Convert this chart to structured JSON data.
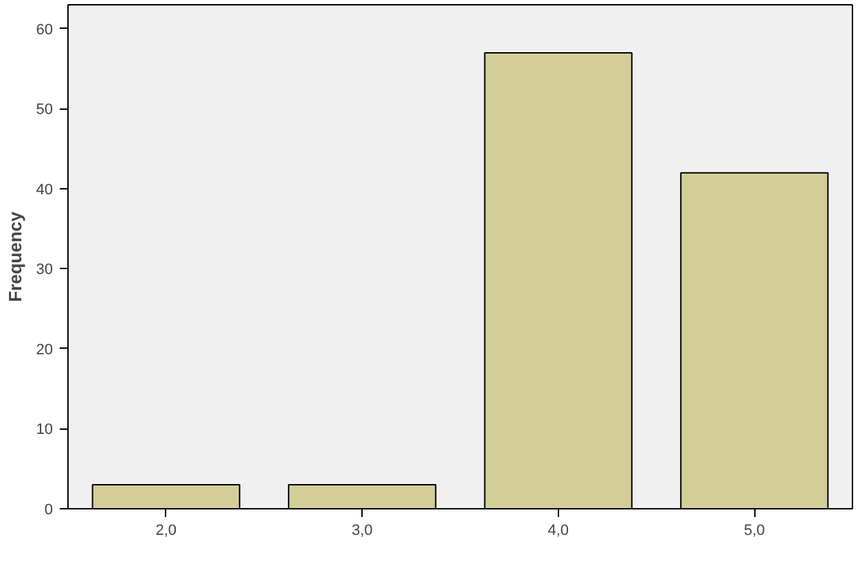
{
  "chart_data": {
    "type": "bar",
    "ylabel": "Frequency",
    "categories": [
      "2,0",
      "3,0",
      "4,0",
      "5,0"
    ],
    "values": [
      3,
      3,
      57,
      42
    ],
    "color": "#d3ce97",
    "ylim": [
      0,
      63
    ],
    "yticks": [
      0,
      10,
      20,
      30,
      40,
      50,
      60
    ],
    "grid": false
  }
}
